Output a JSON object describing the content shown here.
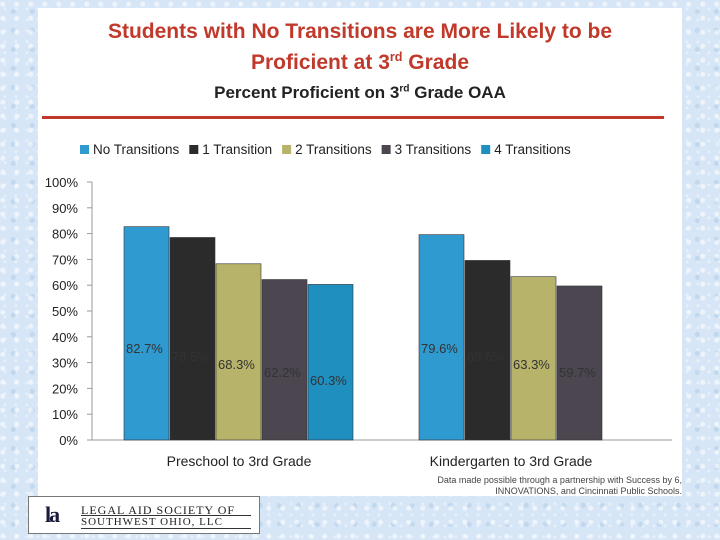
{
  "title": {
    "line1": "Students with No Transitions are More Likely to be",
    "line2_main": "Proficient at 3",
    "line2_sup": "rd",
    "line2_end": " Grade"
  },
  "subtitle": {
    "main": "Percent Proficient on 3",
    "sup": "rd",
    "end": " Grade OAA"
  },
  "chart_data": {
    "type": "bar",
    "categories": [
      "Preschool to 3rd Grade",
      "Kindergarten to 3rd Grade"
    ],
    "series": [
      {
        "name": "No Transitions",
        "color": "#2e9ad0",
        "values": [
          82.7,
          79.6
        ]
      },
      {
        "name": "1 Transition",
        "color": "#2b2b2b",
        "values": [
          78.5,
          69.6
        ]
      },
      {
        "name": "2 Transitions",
        "color": "#b7b36a",
        "values": [
          68.3,
          63.3
        ]
      },
      {
        "name": "3 Transitions",
        "color": "#4b4650",
        "values": [
          62.2,
          59.7
        ]
      },
      {
        "name": "4 Transitions",
        "color": "#1f8fc0",
        "values": [
          60.3,
          null
        ]
      }
    ],
    "data_labels": [
      [
        "82.7%",
        "78.5%",
        "68.3%",
        "62.2%",
        "60.3%"
      ],
      [
        "79.6%",
        "69.6%",
        "63.3%",
        "59.7%",
        ""
      ]
    ],
    "yticks": [
      "0%",
      "10%",
      "20%",
      "30%",
      "40%",
      "50%",
      "60%",
      "70%",
      "80%",
      "90%",
      "100%"
    ],
    "ylim": [
      0,
      100
    ],
    "legend_position": "top",
    "grid": false
  },
  "footnote": "Data made possible through a partnership with Success by 6, INNOVATIONS, and Cincinnati Public Schools.",
  "logo": {
    "mark": "la",
    "line1": "LEGAL AID SOCIETY OF",
    "line2": "SOUTHWEST OHIO, LLC"
  }
}
